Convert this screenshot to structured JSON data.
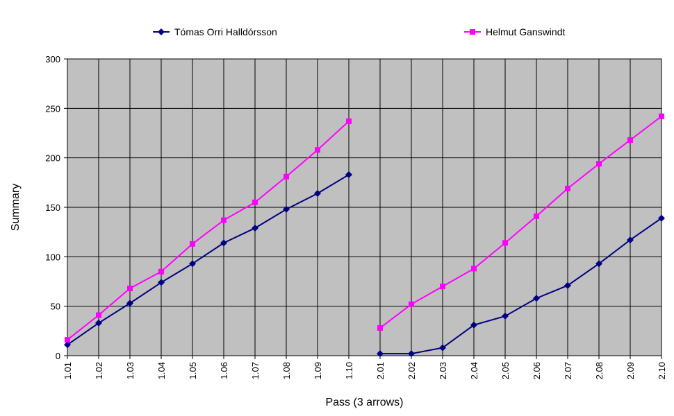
{
  "chart_data": {
    "type": "line",
    "title": "",
    "xlabel": "Pass (3 arrows)",
    "ylabel": "Summary",
    "ylim": [
      0,
      300
    ],
    "yticks": [
      "0",
      "50",
      "100",
      "150",
      "200",
      "250",
      "300"
    ],
    "grid": true,
    "plot_background": "#c0c0c0",
    "legend_position": "top",
    "categories": [
      "1.01",
      "1.02",
      "1.03",
      "1.04",
      "1.05",
      "1.06",
      "1.07",
      "1.08",
      "1.09",
      "1.10",
      "2.01",
      "2.02",
      "2.03",
      "2.04",
      "2.05",
      "2.06",
      "2.07",
      "2.08",
      "2.09",
      "2.10"
    ],
    "series": [
      {
        "name": "Tómas Orri Halldórsson",
        "color": "#000080",
        "marker": "diamond",
        "values": [
          11,
          33,
          53,
          74,
          93,
          114,
          129,
          148,
          164,
          183,
          2,
          2,
          8,
          31,
          40,
          58,
          71,
          93,
          117,
          139
        ]
      },
      {
        "name": "Helmut Ganswindt",
        "color": "#ff00ff",
        "marker": "square",
        "values": [
          16,
          41,
          68,
          85,
          113,
          137,
          155,
          181,
          208,
          237,
          28,
          52,
          70,
          88,
          114,
          141,
          169,
          194,
          218,
          242
        ]
      }
    ],
    "segment_breaks": [
      10
    ]
  }
}
